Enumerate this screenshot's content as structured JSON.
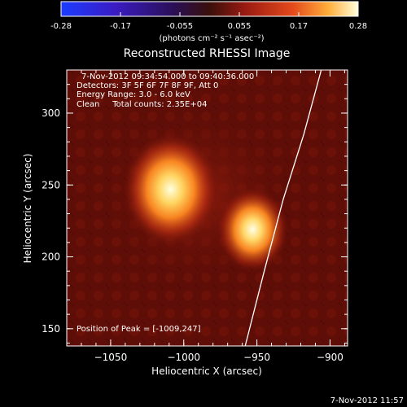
{
  "colorbar": {
    "ticks": [
      "-0.28",
      "-0.17",
      "-0.055",
      "0.055",
      "0.17",
      "0.28"
    ],
    "unit_label": "(photons cm⁻² s⁻¹ asec⁻²)"
  },
  "plot": {
    "title": "Reconstructed RHESSI Image",
    "info": [
      "7-Nov-2012 09:34:54.000 to 09:40:36.000",
      "Detectors: 3F 5F 6F 7F 8F 9F, Att 0",
      "Energy Range: 3.0 - 6.0 keV",
      "Clean     Total counts: 2.35E+04"
    ],
    "peak_label": "Position of Peak = [-1009,247]",
    "timestamp": "7-Nov-2012 11:57"
  },
  "chart_data": {
    "type": "heatmap",
    "title": "Reconstructed RHESSI Image",
    "xlabel": "Heliocentric X (arcsec)",
    "ylabel": "Heliocentric Y (arcsec)",
    "xlim": [
      -1080,
      -888
    ],
    "ylim": [
      138,
      330
    ],
    "x_ticks": [
      -1050,
      -1000,
      -950,
      -900
    ],
    "x_tick_labels": [
      "−1050",
      "−1000",
      "−950",
      "−900"
    ],
    "y_ticks": [
      150,
      200,
      250,
      300
    ],
    "y_tick_labels": [
      "150",
      "200",
      "250",
      "300"
    ],
    "colorbar_range": [
      -0.28,
      0.28
    ],
    "sources": [
      {
        "x": -1009,
        "y": 247,
        "peak": 0.28,
        "sigma": 12
      },
      {
        "x": -953,
        "y": 219,
        "peak": 0.26,
        "sigma": 9
      }
    ],
    "limb_curve": [
      [
        -958,
        138
      ],
      [
        -945,
        190
      ],
      [
        -932,
        240
      ],
      [
        -918,
        285
      ],
      [
        -906,
        330
      ]
    ]
  }
}
